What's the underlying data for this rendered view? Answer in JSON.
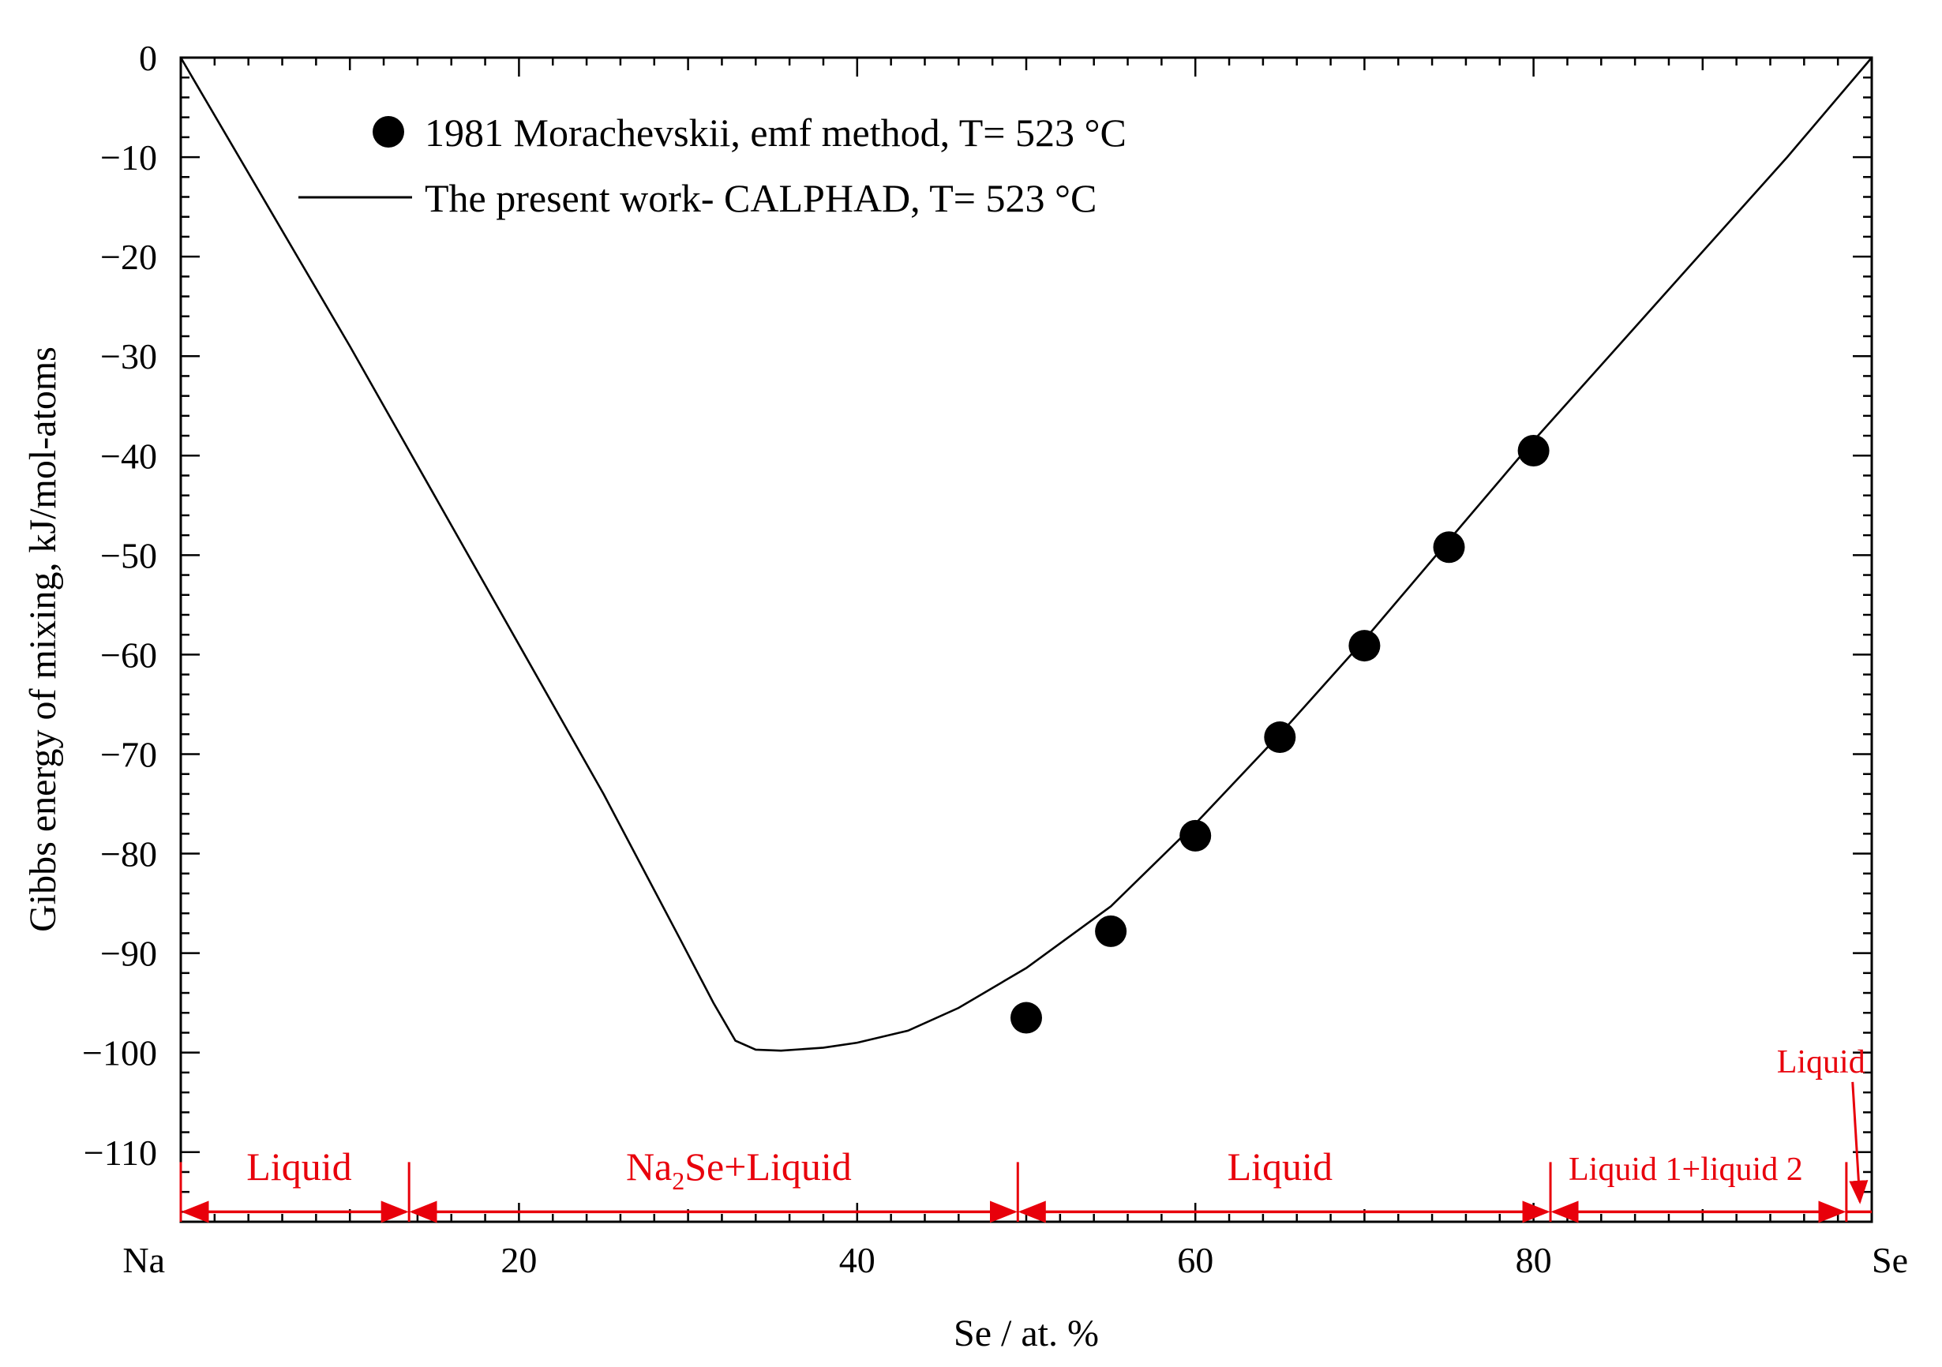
{
  "chart_data": {
    "type": "scatter",
    "title": "",
    "xlabel": "Se / at. %",
    "ylabel": "Gibbs energy of mixing, kJ/mol-atoms",
    "xlim": [
      0,
      100
    ],
    "ylim": [
      -117,
      0
    ],
    "x_ticks": [
      {
        "value": 0,
        "label": "Na"
      },
      {
        "value": 20,
        "label": "20"
      },
      {
        "value": 40,
        "label": "40"
      },
      {
        "value": 60,
        "label": "60"
      },
      {
        "value": 80,
        "label": "80"
      },
      {
        "value": 100,
        "label": "Se"
      }
    ],
    "y_ticks": [
      {
        "value": 0,
        "label": "0"
      },
      {
        "value": -10,
        "label": "−10"
      },
      {
        "value": -20,
        "label": "−20"
      },
      {
        "value": -30,
        "label": "−30"
      },
      {
        "value": -40,
        "label": "−40"
      },
      {
        "value": -50,
        "label": "−50"
      },
      {
        "value": -60,
        "label": "−60"
      },
      {
        "value": -70,
        "label": "−70"
      },
      {
        "value": -80,
        "label": "−80"
      },
      {
        "value": -90,
        "label": "−90"
      },
      {
        "value": -100,
        "label": "−100"
      },
      {
        "value": -110,
        "label": "−110"
      }
    ],
    "legend_position": "top-left",
    "series": [
      {
        "name": "1981 Morachevskii, emf method, T= 523 °C",
        "kind": "scatter",
        "color": "#000000",
        "points": [
          {
            "x": 50,
            "y": -96.5
          },
          {
            "x": 55,
            "y": -87.8
          },
          {
            "x": 60,
            "y": -78.2
          },
          {
            "x": 65,
            "y": -68.3
          },
          {
            "x": 70,
            "y": -59.1
          },
          {
            "x": 75,
            "y": -49.2
          },
          {
            "x": 80,
            "y": -39.5
          }
        ]
      },
      {
        "name": "The present work- CALPHAD, T= 523 °C",
        "kind": "line",
        "color": "#000000",
        "points": [
          {
            "x": 0,
            "y": 0
          },
          {
            "x": 5,
            "y": -14.5
          },
          {
            "x": 10,
            "y": -29
          },
          {
            "x": 15,
            "y": -44
          },
          {
            "x": 20,
            "y": -59
          },
          {
            "x": 25,
            "y": -74
          },
          {
            "x": 29.5,
            "y": -88.5
          },
          {
            "x": 31.5,
            "y": -95
          },
          {
            "x": 32.8,
            "y": -98.8
          },
          {
            "x": 34,
            "y": -99.7
          },
          {
            "x": 35.5,
            "y": -99.8
          },
          {
            "x": 38,
            "y": -99.5
          },
          {
            "x": 40,
            "y": -99
          },
          {
            "x": 43,
            "y": -97.8
          },
          {
            "x": 46,
            "y": -95.5
          },
          {
            "x": 50,
            "y": -91.5
          },
          {
            "x": 55,
            "y": -85.3
          },
          {
            "x": 60,
            "y": -77
          },
          {
            "x": 65,
            "y": -68
          },
          {
            "x": 70,
            "y": -58.5
          },
          {
            "x": 75,
            "y": -48.5
          },
          {
            "x": 80,
            "y": -38.5
          },
          {
            "x": 85,
            "y": -29
          },
          {
            "x": 90,
            "y": -19.5
          },
          {
            "x": 95,
            "y": -10
          },
          {
            "x": 100,
            "y": 0
          }
        ]
      }
    ],
    "annotations": {
      "color": "#e8000b",
      "arrow_y": -116,
      "boundaries": [
        0,
        13.5,
        49.5,
        81,
        98.5
      ],
      "regions": [
        {
          "from": 0,
          "to": 13.5,
          "label": "Liquid",
          "label_x": 7
        },
        {
          "from": 13.5,
          "to": 49.5,
          "label_main": "Na",
          "label_sub": "2",
          "label_rest": "Se+Liquid",
          "label_x": 33
        },
        {
          "from": 49.5,
          "to": 81,
          "label": "Liquid",
          "label_x": 65
        },
        {
          "from": 81,
          "to": 98.5,
          "label": "Liquid 1+liquid 2",
          "label_x": 89
        }
      ],
      "callout": {
        "label": "Liquid",
        "text_x": 97,
        "text_y": -102,
        "target_x": 99.3,
        "target_y": -115
      }
    }
  }
}
